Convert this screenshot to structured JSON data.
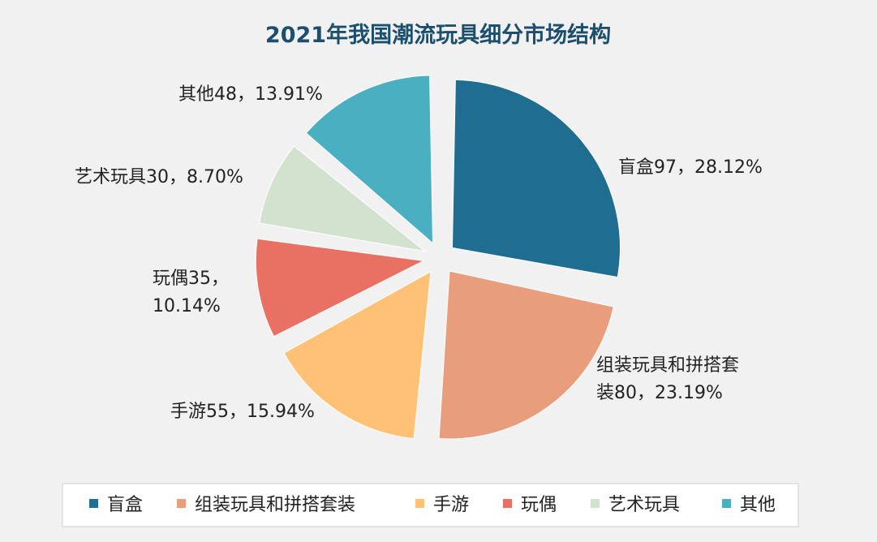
{
  "chart_data": {
    "type": "pie",
    "title": "2021年我国潮流玩具细分市场结构",
    "legend_position": "bottom",
    "slices": [
      {
        "label": "盲盒",
        "value": 97,
        "percent": "28.12%",
        "display": [
          "盲盒97，28.12%"
        ],
        "color": "#1f6e91"
      },
      {
        "label": "组装玩具和拼搭套装",
        "value": 80,
        "percent": "23.19%",
        "display": [
          "组装玩具和拼搭套",
          "装80，23.19%"
        ],
        "color": "#e89e7c"
      },
      {
        "label": "手游",
        "value": 55,
        "percent": "15.94%",
        "display": [
          "手游55，15.94%"
        ],
        "color": "#ffc175"
      },
      {
        "label": "玩偶",
        "value": 35,
        "percent": "10.14%",
        "display": [
          "玩偶35，",
          "10.14%"
        ],
        "color": "#e97163"
      },
      {
        "label": "艺术玩具",
        "value": 30,
        "percent": "8.70%",
        "display": [
          "艺术玩具30，8.70%"
        ],
        "color": "#d3e2cf"
      },
      {
        "label": "其他",
        "value": 48,
        "percent": "13.91%",
        "display": [
          "其他48，13.91%"
        ],
        "color": "#4ab0c1"
      }
    ]
  }
}
